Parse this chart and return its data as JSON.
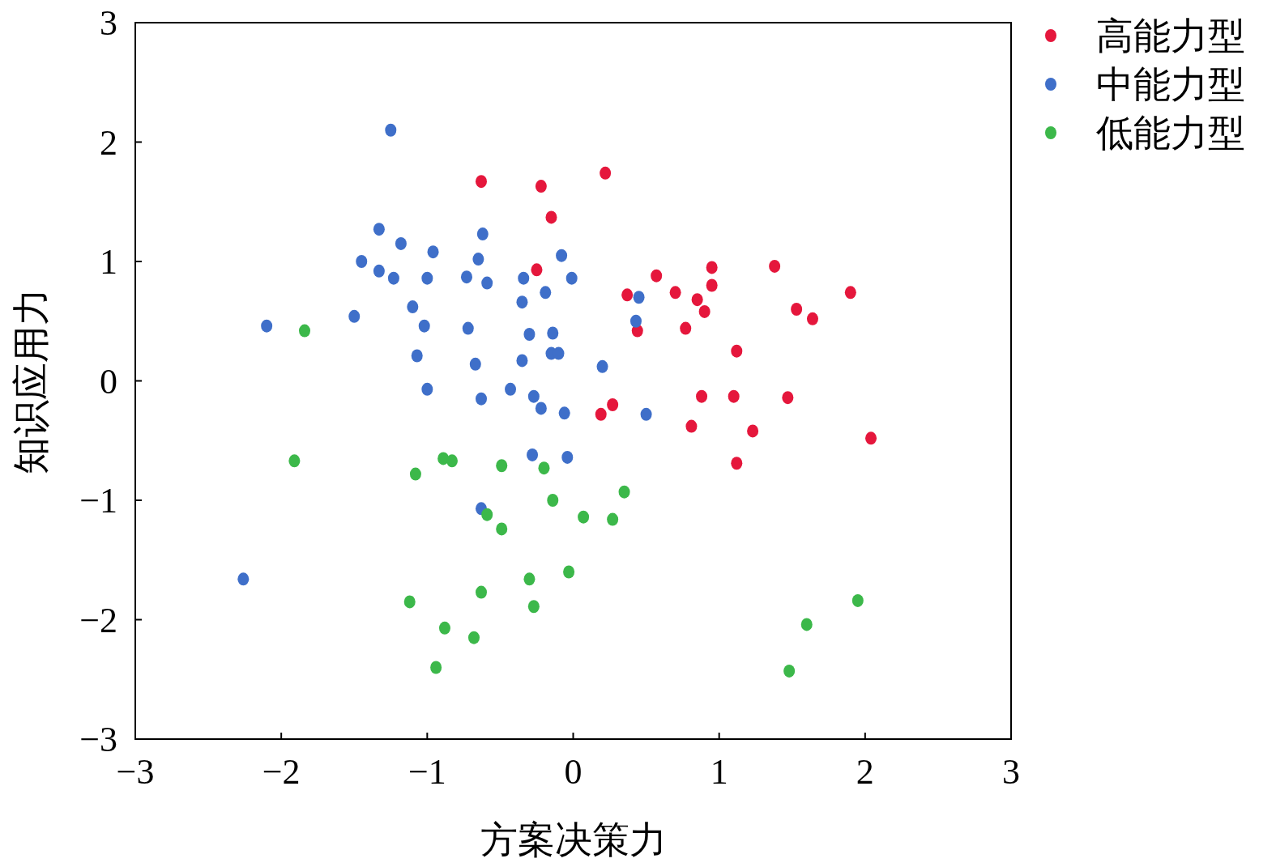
{
  "chart_data": {
    "type": "scatter",
    "xlabel": "方案决策力",
    "ylabel": "知识应用力",
    "xlim": [
      -3,
      3
    ],
    "ylim": [
      -3,
      3
    ],
    "xticks": [
      -3,
      -2,
      -1,
      0,
      1,
      2,
      3
    ],
    "yticks": [
      -3,
      -2,
      -1,
      0,
      1,
      2,
      3
    ],
    "legend": "top right",
    "marker": "circle",
    "grid": false,
    "series": [
      {
        "name": "高能力型",
        "color": "#e5173c",
        "x": [
          -0.63,
          -0.22,
          -0.15,
          0.22,
          -0.25,
          0.37,
          0.57,
          0.7,
          0.85,
          0.9,
          0.77,
          0.95,
          0.95,
          1.38,
          1.53,
          1.64,
          1.9,
          1.12,
          0.44,
          0.88,
          1.1,
          1.47,
          0.27,
          0.19,
          0.81,
          1.23,
          2.04,
          1.12
        ],
        "values": [
          1.67,
          1.63,
          1.37,
          1.74,
          0.93,
          0.72,
          0.88,
          0.74,
          0.68,
          0.58,
          0.44,
          0.95,
          0.8,
          0.96,
          0.6,
          0.52,
          0.74,
          0.25,
          0.42,
          -0.13,
          -0.13,
          -0.14,
          -0.2,
          -0.28,
          -0.38,
          -0.42,
          -0.48,
          -0.69
        ]
      },
      {
        "name": "中能力型",
        "color": "#3f6fc9",
        "x": [
          -1.25,
          -1.33,
          -1.18,
          -0.62,
          -1.45,
          -0.96,
          -0.65,
          -0.08,
          -1.33,
          -1.23,
          -1.0,
          -0.73,
          -0.34,
          -0.01,
          -0.59,
          -0.19,
          0.45,
          -0.35,
          -1.1,
          -2.1,
          -1.5,
          -1.02,
          -0.72,
          0.43,
          -0.3,
          -0.14,
          -1.07,
          -0.35,
          -0.15,
          -0.1,
          0.2,
          -0.67,
          -1.0,
          -0.43,
          -0.27,
          -0.63,
          -0.22,
          -0.06,
          0.5,
          -0.28,
          -0.04,
          -0.63,
          -2.26
        ],
        "values": [
          2.1,
          1.27,
          1.15,
          1.23,
          1.0,
          1.08,
          1.02,
          1.05,
          0.92,
          0.86,
          0.86,
          0.87,
          0.86,
          0.86,
          0.82,
          0.74,
          0.7,
          0.66,
          0.62,
          0.46,
          0.54,
          0.46,
          0.44,
          0.5,
          0.39,
          0.4,
          0.21,
          0.17,
          0.23,
          0.23,
          0.12,
          0.14,
          -0.07,
          -0.07,
          -0.13,
          -0.15,
          -0.23,
          -0.27,
          -0.28,
          -0.62,
          -0.64,
          -1.07,
          -1.66
        ]
      },
      {
        "name": "低能力型",
        "color": "#3cb84a",
        "x": [
          -1.84,
          -1.91,
          -0.89,
          -0.83,
          -1.08,
          -0.49,
          -0.2,
          -0.14,
          0.35,
          -0.59,
          0.07,
          0.27,
          -0.49,
          -0.03,
          -0.3,
          -0.63,
          -1.12,
          -0.27,
          -0.88,
          -0.68,
          -0.94,
          1.95,
          1.6,
          1.48
        ],
        "values": [
          0.42,
          -0.67,
          -0.65,
          -0.67,
          -0.78,
          -0.71,
          -0.73,
          -1.0,
          -0.93,
          -1.12,
          -1.14,
          -1.16,
          -1.24,
          -1.6,
          -1.66,
          -1.77,
          -1.85,
          -1.89,
          -2.07,
          -2.15,
          -2.4,
          -1.84,
          -2.04,
          -2.43
        ]
      }
    ]
  }
}
